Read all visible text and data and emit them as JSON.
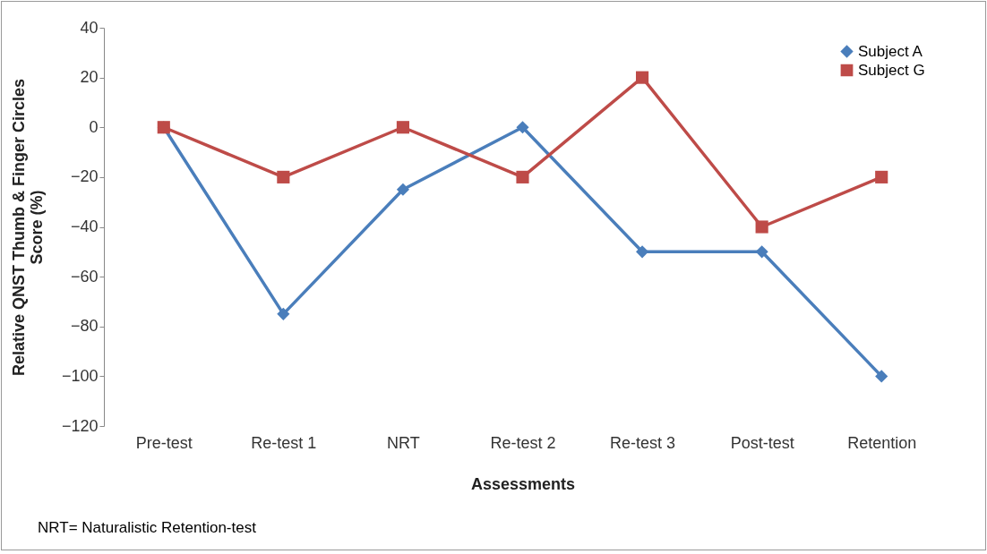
{
  "chart_data": {
    "type": "line",
    "xlabel": "Assessments",
    "ylabel": "Relative QNST Thumb & Finger Circles\nScore (%)",
    "categories": [
      "Pre-test",
      "Re-test 1",
      "NRT",
      "Re-test 2",
      "Re-test 3",
      "Post-test",
      "Retention"
    ],
    "series": [
      {
        "name": "Subject A",
        "color": "#4a7ebb",
        "marker": "diamond",
        "values": [
          0,
          -75,
          -25,
          0,
          -50,
          -50,
          -100
        ]
      },
      {
        "name": "Subject G",
        "color": "#be4b48",
        "marker": "square",
        "values": [
          0,
          -20,
          0,
          -20,
          20,
          -40,
          -20
        ]
      }
    ],
    "ylim": [
      -120,
      40
    ],
    "yticks": [
      -120,
      -100,
      -80,
      -60,
      -40,
      -20,
      0,
      20,
      40
    ],
    "grid": false,
    "legend": "top right",
    "annotations": [
      "NRT= Naturalistic Retention-test"
    ]
  }
}
